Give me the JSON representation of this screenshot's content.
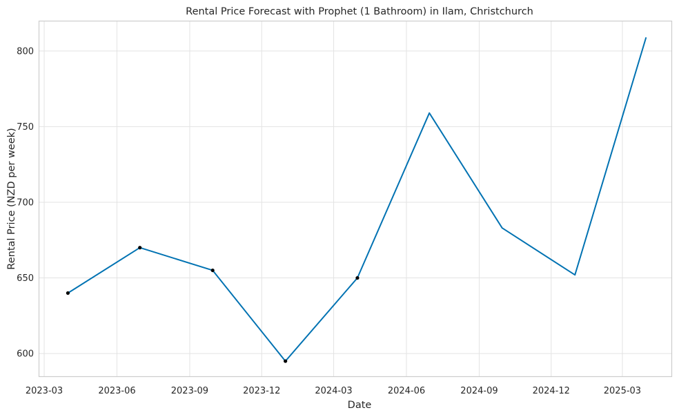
{
  "chart_data": {
    "type": "line",
    "title": "Rental Price Forecast with Prophet (1 Bathroom) in Ilam, Christchurch",
    "xlabel": "Date",
    "ylabel": "Rental Price (NZD per week)",
    "x_ticks": [
      "2023-03",
      "2023-06",
      "2023-09",
      "2023-12",
      "2024-03",
      "2024-06",
      "2024-09",
      "2024-12",
      "2025-03"
    ],
    "y_ticks": [
      600,
      650,
      700,
      750,
      800
    ],
    "xlim": [
      "2023-02-22",
      "2025-05-02"
    ],
    "ylim": [
      585,
      820
    ],
    "grid": true,
    "colors": {
      "forecast_line": "#0072b2",
      "observed_points": "#000000"
    },
    "series": [
      {
        "kind": "forecast",
        "x": [
          "2023-03-31",
          "2023-06-30",
          "2023-09-30",
          "2023-12-31",
          "2024-03-31",
          "2024-06-30",
          "2024-09-30",
          "2024-12-31",
          "2025-03-31"
        ],
        "y": [
          640,
          670,
          655,
          595,
          650,
          759,
          683,
          652,
          809
        ]
      },
      {
        "kind": "observed",
        "x": [
          "2023-03-31",
          "2023-06-30",
          "2023-09-30",
          "2023-12-31",
          "2024-03-31"
        ],
        "y": [
          640,
          670,
          655,
          595,
          650
        ]
      }
    ]
  }
}
